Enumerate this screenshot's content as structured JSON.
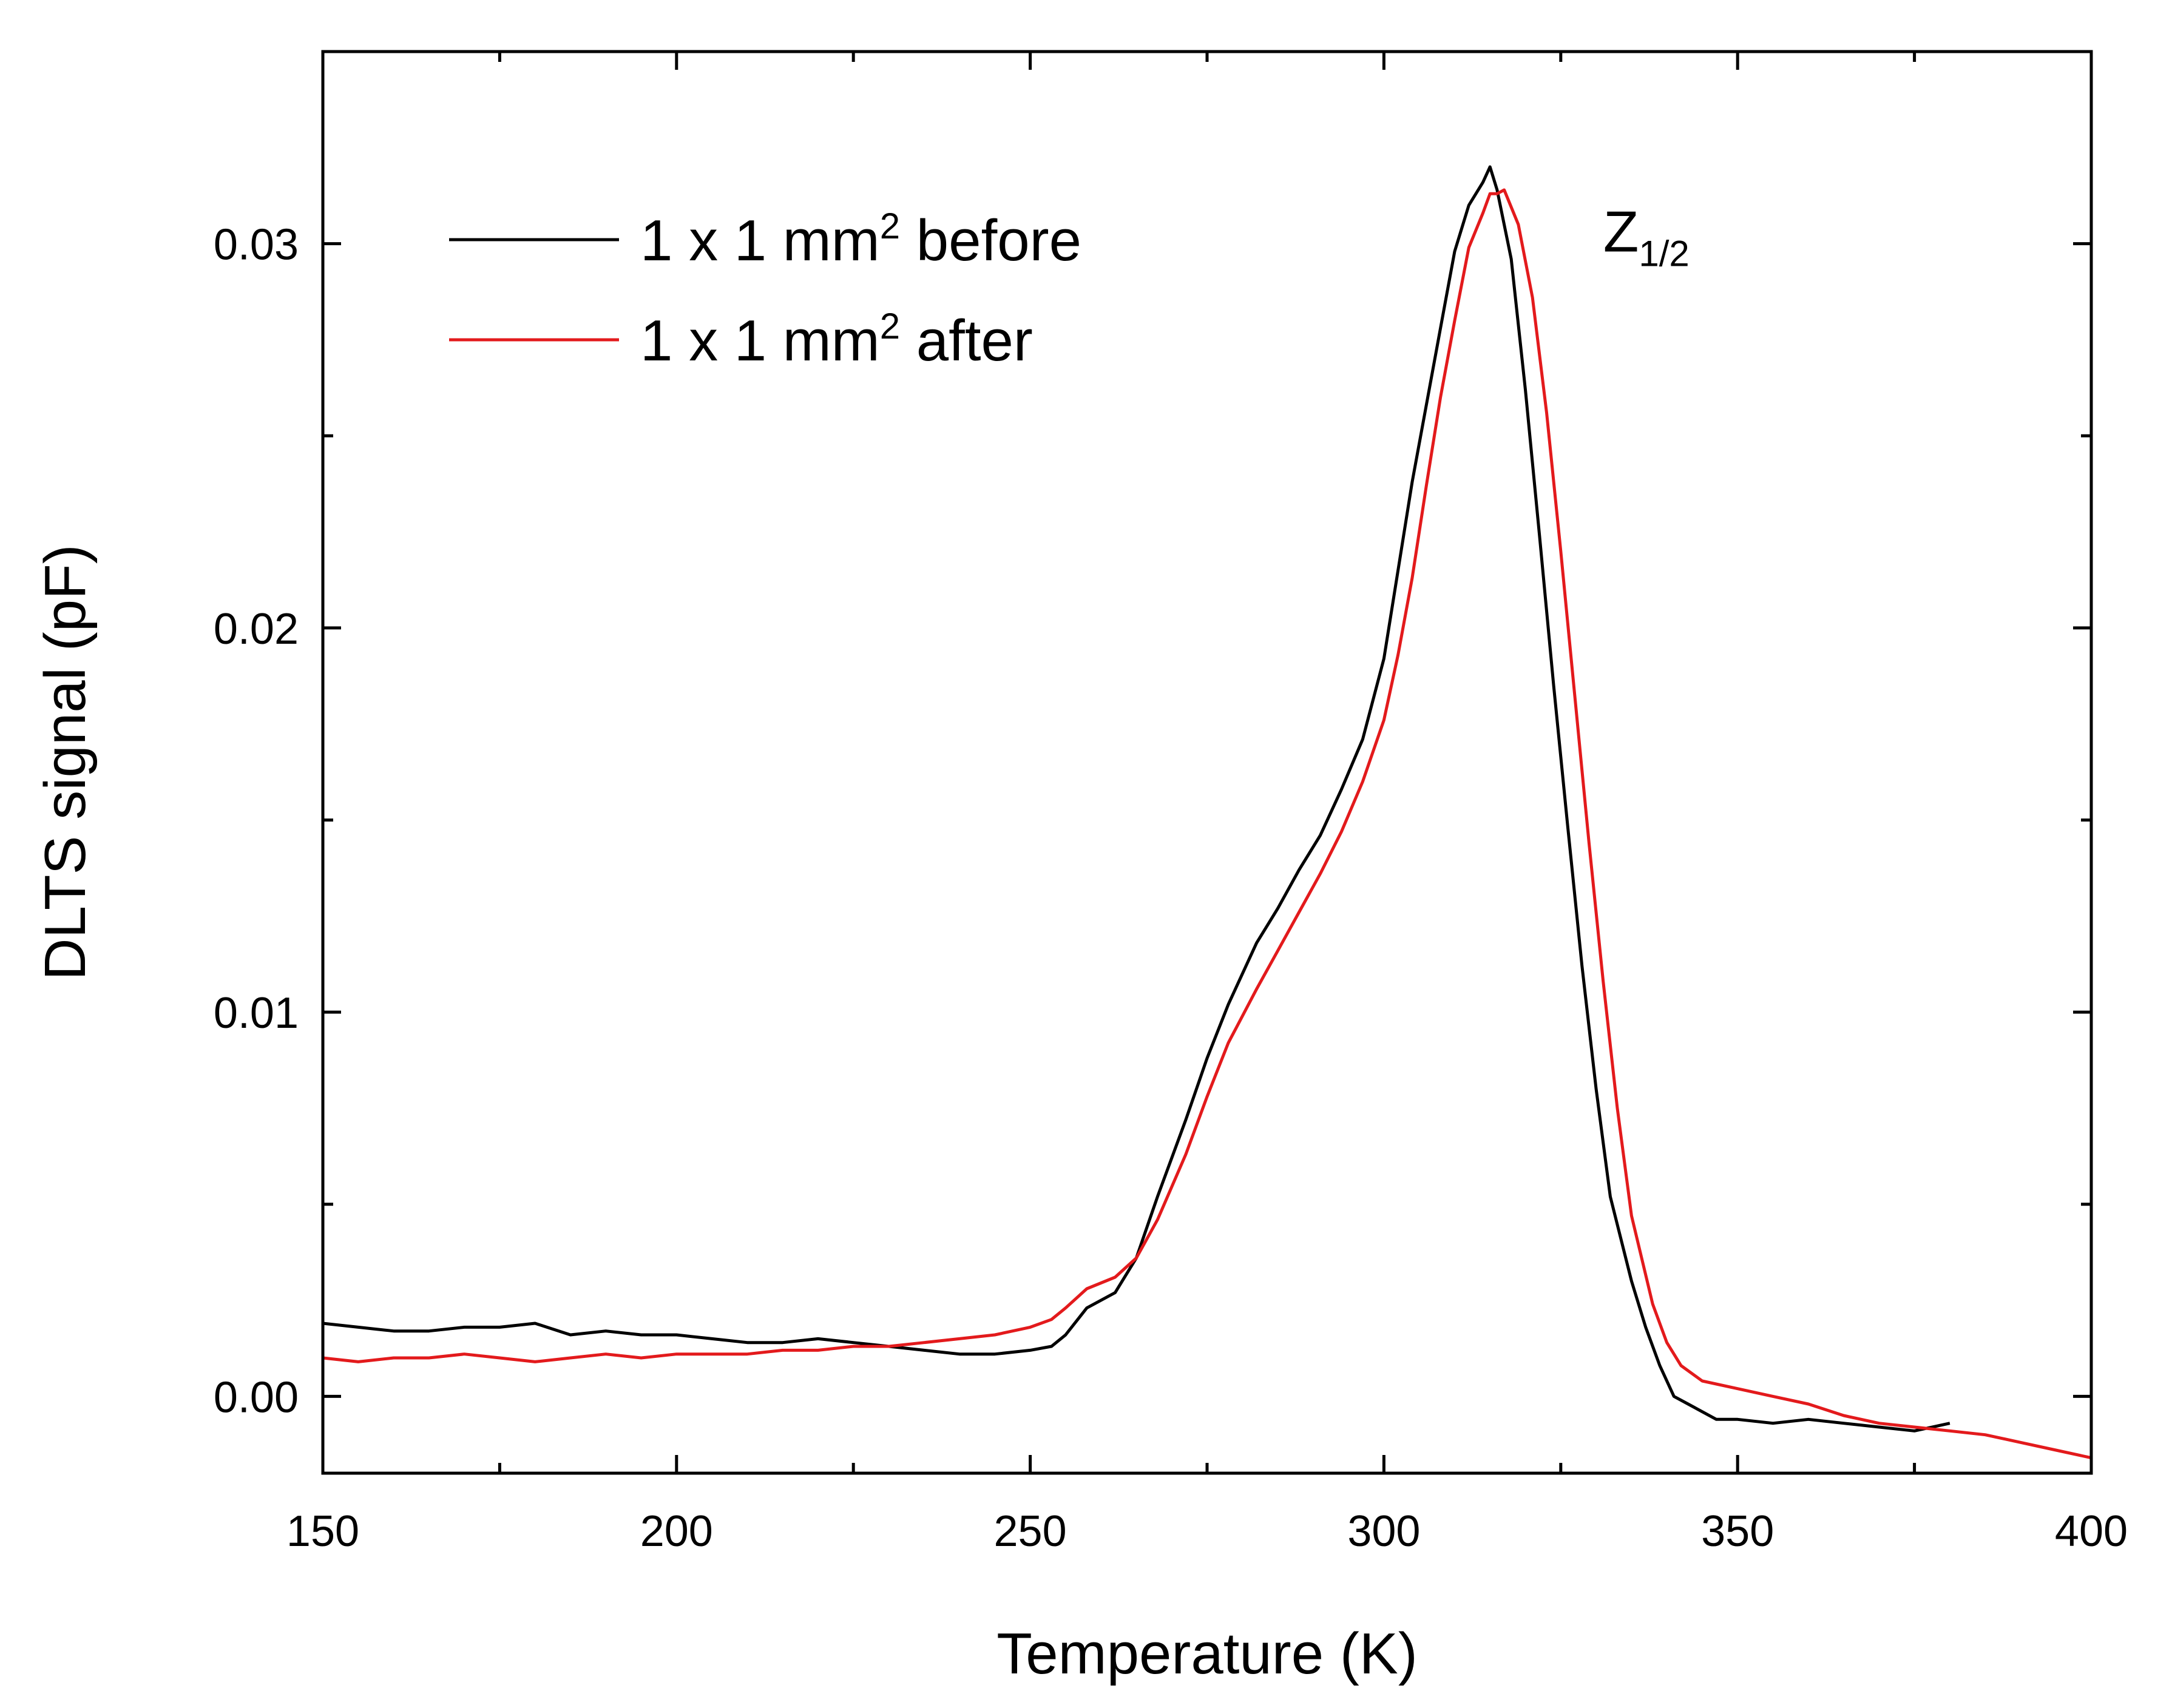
{
  "chart_data": {
    "type": "line",
    "title": "",
    "xlabel": "Temperature (K)",
    "ylabel": "DLTS signal (pF)",
    "xlim": [
      150,
      400
    ],
    "ylim": [
      -0.002,
      0.035
    ],
    "xticks": [
      150,
      200,
      250,
      300,
      350,
      400
    ],
    "xtick_labels": [
      "150",
      "200",
      "250",
      "300",
      "350",
      "400"
    ],
    "yticks": [
      0.0,
      0.01,
      0.02,
      0.03
    ],
    "ytick_labels": [
      "0.00",
      "0.01",
      "0.02",
      "0.03"
    ],
    "x_minor_step": 25,
    "y_minor_step": 0.005,
    "grid": false,
    "legend_position": "top-left",
    "legend_items": [
      {
        "base": "1 x 1 mm",
        "sup": "2",
        "rest": " before",
        "color": "#000000"
      },
      {
        "base": "1 x 1 mm",
        "sup": "2",
        "rest": " after",
        "color": "#e31a1c"
      }
    ],
    "annotation": {
      "base": "Z",
      "sub": "1/2",
      "x": 331,
      "y": 0.0298
    },
    "series": [
      {
        "name": "1 x 1 mm2 before",
        "color": "#000000",
        "points": [
          [
            150,
            0.0019
          ],
          [
            155,
            0.0018
          ],
          [
            160,
            0.0017
          ],
          [
            165,
            0.0017
          ],
          [
            170,
            0.0018
          ],
          [
            175,
            0.0018
          ],
          [
            180,
            0.0019
          ],
          [
            185,
            0.0016
          ],
          [
            190,
            0.0017
          ],
          [
            195,
            0.0016
          ],
          [
            200,
            0.0016
          ],
          [
            205,
            0.0015
          ],
          [
            210,
            0.0014
          ],
          [
            215,
            0.0014
          ],
          [
            220,
            0.0015
          ],
          [
            225,
            0.0014
          ],
          [
            230,
            0.0013
          ],
          [
            235,
            0.0012
          ],
          [
            240,
            0.0011
          ],
          [
            245,
            0.0011
          ],
          [
            250,
            0.0012
          ],
          [
            253,
            0.0013
          ],
          [
            255,
            0.0016
          ],
          [
            258,
            0.0023
          ],
          [
            262,
            0.0027
          ],
          [
            265,
            0.0036
          ],
          [
            268,
            0.0052
          ],
          [
            272,
            0.0072
          ],
          [
            275,
            0.0088
          ],
          [
            278,
            0.0102
          ],
          [
            282,
            0.0118
          ],
          [
            285,
            0.0127
          ],
          [
            288,
            0.0137
          ],
          [
            291,
            0.0146
          ],
          [
            294,
            0.0158
          ],
          [
            297,
            0.0171
          ],
          [
            300,
            0.0192
          ],
          [
            302,
            0.0215
          ],
          [
            304,
            0.0238
          ],
          [
            306,
            0.0258
          ],
          [
            308,
            0.0278
          ],
          [
            310,
            0.0298
          ],
          [
            312,
            0.031
          ],
          [
            314,
            0.0316
          ],
          [
            315,
            0.032
          ],
          [
            316,
            0.0314
          ],
          [
            318,
            0.0296
          ],
          [
            320,
            0.0262
          ],
          [
            322,
            0.0224
          ],
          [
            324,
            0.0185
          ],
          [
            326,
            0.0148
          ],
          [
            328,
            0.0112
          ],
          [
            330,
            0.008
          ],
          [
            332,
            0.0052
          ],
          [
            335,
            0.003
          ],
          [
            337,
            0.0018
          ],
          [
            339,
            0.0008
          ],
          [
            341,
            0.0
          ],
          [
            343,
            -0.0002
          ],
          [
            347,
            -0.0006
          ],
          [
            350,
            -0.0006
          ],
          [
            355,
            -0.0007
          ],
          [
            360,
            -0.0006
          ],
          [
            365,
            -0.0007
          ],
          [
            370,
            -0.0008
          ],
          [
            375,
            -0.0009
          ],
          [
            380,
            -0.0007
          ]
        ]
      },
      {
        "name": "1 x 1 mm2 after",
        "color": "#e31a1c",
        "points": [
          [
            150,
            0.001
          ],
          [
            155,
            0.0009
          ],
          [
            160,
            0.001
          ],
          [
            165,
            0.001
          ],
          [
            170,
            0.0011
          ],
          [
            175,
            0.001
          ],
          [
            180,
            0.0009
          ],
          [
            185,
            0.001
          ],
          [
            190,
            0.0011
          ],
          [
            195,
            0.001
          ],
          [
            200,
            0.0011
          ],
          [
            205,
            0.0011
          ],
          [
            210,
            0.0011
          ],
          [
            215,
            0.0012
          ],
          [
            220,
            0.0012
          ],
          [
            225,
            0.0013
          ],
          [
            230,
            0.0013
          ],
          [
            235,
            0.0014
          ],
          [
            240,
            0.0015
          ],
          [
            245,
            0.0016
          ],
          [
            250,
            0.0018
          ],
          [
            253,
            0.002
          ],
          [
            255,
            0.0023
          ],
          [
            258,
            0.0028
          ],
          [
            262,
            0.0031
          ],
          [
            265,
            0.0036
          ],
          [
            268,
            0.0046
          ],
          [
            272,
            0.0063
          ],
          [
            275,
            0.0078
          ],
          [
            278,
            0.0092
          ],
          [
            282,
            0.0106
          ],
          [
            285,
            0.0116
          ],
          [
            288,
            0.0126
          ],
          [
            291,
            0.0136
          ],
          [
            294,
            0.0147
          ],
          [
            297,
            0.016
          ],
          [
            300,
            0.0176
          ],
          [
            302,
            0.0193
          ],
          [
            304,
            0.0213
          ],
          [
            306,
            0.0237
          ],
          [
            308,
            0.026
          ],
          [
            310,
            0.028
          ],
          [
            312,
            0.0299
          ],
          [
            314,
            0.0308
          ],
          [
            315,
            0.0313
          ],
          [
            316,
            0.0313
          ],
          [
            317,
            0.0314
          ],
          [
            319,
            0.0305
          ],
          [
            321,
            0.0286
          ],
          [
            323,
            0.0256
          ],
          [
            325,
            0.022
          ],
          [
            327,
            0.0182
          ],
          [
            329,
            0.0144
          ],
          [
            331,
            0.0108
          ],
          [
            333,
            0.0075
          ],
          [
            335,
            0.0047
          ],
          [
            338,
            0.0024
          ],
          [
            340,
            0.0014
          ],
          [
            342,
            0.0008
          ],
          [
            345,
            0.0004
          ],
          [
            350,
            0.0002
          ],
          [
            355,
            0.0
          ],
          [
            360,
            -0.0002
          ],
          [
            365,
            -0.0005
          ],
          [
            370,
            -0.0007
          ],
          [
            375,
            -0.0008
          ],
          [
            380,
            -0.0009
          ],
          [
            385,
            -0.001
          ],
          [
            390,
            -0.0012
          ],
          [
            395,
            -0.0014
          ],
          [
            400,
            -0.0016
          ]
        ]
      }
    ]
  }
}
